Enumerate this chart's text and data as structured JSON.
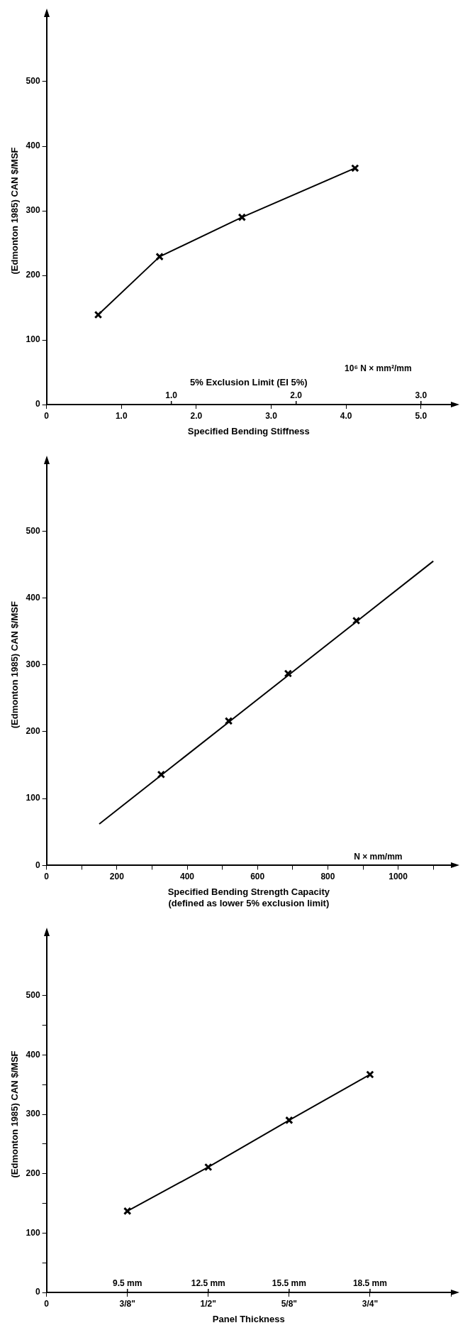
{
  "chart_data": [
    {
      "type": "line",
      "xlabel": "Specified Bending Stiffness",
      "x2label": "5% Exclusion Limit (EI 5%)",
      "ylabel": "(Edmonton 1985) CAN $/MSF",
      "annotations": [
        "10⁶ N × mm²/mm"
      ],
      "xlim": [
        0,
        5.4
      ],
      "xticks": [
        0,
        {
          "value": 1,
          "label": "1.0"
        },
        {
          "value": 2,
          "label": "2.0"
        },
        {
          "value": 3,
          "label": "3.0"
        },
        {
          "value": 4,
          "label": "4.0"
        },
        {
          "value": 5,
          "label": "5.0"
        }
      ],
      "x2lim": [
        0,
        3.24
      ],
      "x2ticks": [
        {
          "value": 1,
          "label": "1.0"
        },
        {
          "value": 2,
          "label": "2.0"
        },
        {
          "value": 3,
          "label": "3.0"
        }
      ],
      "ylim": [
        0,
        600
      ],
      "yticks": [
        0,
        100,
        200,
        300,
        400,
        500
      ],
      "grid": false,
      "legend": false,
      "series": [
        {
          "type": "line",
          "marker": "cross",
          "color": "#000000",
          "x": [
            0.69,
            1.51,
            2.61,
            4.12
          ],
          "values": [
            139,
            229,
            290,
            366
          ]
        }
      ]
    },
    {
      "type": "line",
      "xlabel": [
        "Specified Bending Strength Capacity",
        "(defined as lower 5% exclusion limit)"
      ],
      "ylabel": "(Edmonton 1985) CAN $/MSF",
      "annotations": [
        "N × mm/mm"
      ],
      "xlim": [
        0,
        1150
      ],
      "xticks": [
        0,
        {
          "value": 100,
          "label": null
        },
        200,
        {
          "value": 300,
          "label": null
        },
        400,
        {
          "value": 500,
          "label": null
        },
        600,
        {
          "value": 700,
          "label": null
        },
        800,
        {
          "value": 900,
          "label": null
        },
        1000,
        {
          "value": 1100,
          "label": null
        }
      ],
      "ylim": [
        0,
        600
      ],
      "yticks": [
        0,
        100,
        200,
        300,
        400,
        500
      ],
      "grid": false,
      "legend": false,
      "series": [
        {
          "type": "scatter",
          "marker": "cross",
          "color": "#000000",
          "values": [
            136,
            216,
            287,
            366
          ],
          "x": [
            326,
            518,
            687,
            881
          ]
        },
        {
          "type": "line",
          "marker": "none",
          "color": "#000000",
          "values": [
            62,
            455
          ],
          "x": [
            150,
            1100
          ]
        }
      ]
    },
    {
      "type": "line",
      "xlabel": "Panel Thickness",
      "ylabel": "(Edmonton 1985) CAN $/MSF",
      "legend": false,
      "categories": [
        "0",
        "3/8\"",
        "1/2\"",
        "5/8\"",
        "3/4\"",
        null
      ],
      "x2lim": [
        6.5,
        21.5
      ],
      "x2ticks": [
        {
          "value": 9.5,
          "label": "9.5 mm"
        },
        {
          "value": 12.5,
          "label": "12.5 mm"
        },
        {
          "value": 15.5,
          "label": "15.5 mm"
        },
        {
          "value": 18.5,
          "label": "18.5 mm"
        }
      ],
      "ylim": [
        0,
        600
      ],
      "yticks": [
        0,
        {
          "value": 50,
          "label": null
        },
        100,
        {
          "value": 150,
          "label": null
        },
        200,
        {
          "value": 250,
          "label": null
        },
        300,
        {
          "value": 350,
          "label": null
        },
        400,
        {
          "value": 450,
          "label": null
        },
        500
      ],
      "grid": false,
      "series": [
        {
          "type": "line",
          "marker": "cross",
          "color": "#000000",
          "values": [
            null,
            137,
            211,
            290,
            367,
            null
          ]
        }
      ]
    }
  ]
}
